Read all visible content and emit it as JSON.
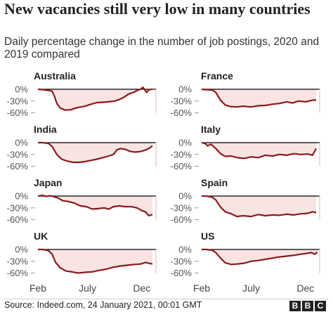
{
  "title": "New vacancies still very low in many countries",
  "subtitle": "Daily percentage change in the number of job postings, 2020 and 2019 compared",
  "source": "Source: Indeed.com, 24 January 2021, 00:01 GMT",
  "logo": [
    "B",
    "B",
    "C"
  ],
  "colors": {
    "line": "#8b1a1a",
    "fill": "#f9e3e3",
    "text": "#222222",
    "grid": "#000000"
  },
  "chart_data": {
    "type": "line",
    "panel_layout": "small multiples, 2 columns x 4 rows",
    "y_ticks": [
      0,
      -30,
      -60
    ],
    "y_tick_labels": [
      "0%",
      "-30%",
      "-60%"
    ],
    "ylim": [
      -65,
      10
    ],
    "x_ticks": [
      "Feb",
      "July",
      "Dec"
    ],
    "xlim": [
      "Feb",
      "Dec"
    ],
    "grid": false,
    "panels": [
      {
        "name": "Australia",
        "points": [
          [
            0,
            0
          ],
          [
            0.04,
            -1
          ],
          [
            0.09,
            -3
          ],
          [
            0.12,
            -5
          ],
          [
            0.14,
            -18
          ],
          [
            0.16,
            -36
          ],
          [
            0.19,
            -48
          ],
          [
            0.23,
            -53
          ],
          [
            0.28,
            -52
          ],
          [
            0.33,
            -47
          ],
          [
            0.4,
            -43
          ],
          [
            0.45,
            -38
          ],
          [
            0.5,
            -34
          ],
          [
            0.55,
            -33
          ],
          [
            0.6,
            -32
          ],
          [
            0.65,
            -30
          ],
          [
            0.69,
            -26
          ],
          [
            0.73,
            -20
          ],
          [
            0.77,
            -12
          ],
          [
            0.81,
            -8
          ],
          [
            0.84,
            -3
          ],
          [
            0.87,
            0
          ],
          [
            0.89,
            5
          ],
          [
            0.92,
            -8
          ],
          [
            0.94,
            -1
          ],
          [
            0.97,
            0
          ]
        ]
      },
      {
        "name": "France",
        "points": [
          [
            0,
            0
          ],
          [
            0.04,
            -1
          ],
          [
            0.09,
            -2
          ],
          [
            0.12,
            -8
          ],
          [
            0.16,
            -28
          ],
          [
            0.2,
            -40
          ],
          [
            0.24,
            -44
          ],
          [
            0.3,
            -45
          ],
          [
            0.35,
            -43
          ],
          [
            0.42,
            -45
          ],
          [
            0.48,
            -42
          ],
          [
            0.54,
            -41
          ],
          [
            0.6,
            -38
          ],
          [
            0.66,
            -36
          ],
          [
            0.72,
            -32
          ],
          [
            0.77,
            -35
          ],
          [
            0.82,
            -30
          ],
          [
            0.88,
            -32
          ],
          [
            0.94,
            -28
          ],
          [
            0.97,
            -27
          ]
        ]
      },
      {
        "name": "India",
        "points": [
          [
            0,
            0
          ],
          [
            0.04,
            0
          ],
          [
            0.09,
            -2
          ],
          [
            0.12,
            -10
          ],
          [
            0.16,
            -30
          ],
          [
            0.2,
            -42
          ],
          [
            0.25,
            -47
          ],
          [
            0.3,
            -50
          ],
          [
            0.35,
            -50
          ],
          [
            0.4,
            -48
          ],
          [
            0.45,
            -45
          ],
          [
            0.5,
            -42
          ],
          [
            0.55,
            -38
          ],
          [
            0.6,
            -34
          ],
          [
            0.64,
            -30
          ],
          [
            0.67,
            -18
          ],
          [
            0.7,
            -15
          ],
          [
            0.74,
            -17
          ],
          [
            0.78,
            -22
          ],
          [
            0.82,
            -24
          ],
          [
            0.86,
            -23
          ],
          [
            0.9,
            -20
          ],
          [
            0.94,
            -15
          ],
          [
            0.97,
            -8
          ]
        ]
      },
      {
        "name": "Italy",
        "points": [
          [
            0,
            0
          ],
          [
            0.03,
            -2
          ],
          [
            0.05,
            -8
          ],
          [
            0.08,
            -4
          ],
          [
            0.12,
            -15
          ],
          [
            0.16,
            -28
          ],
          [
            0.2,
            -35
          ],
          [
            0.25,
            -34
          ],
          [
            0.3,
            -38
          ],
          [
            0.36,
            -40
          ],
          [
            0.42,
            -36
          ],
          [
            0.48,
            -38
          ],
          [
            0.54,
            -32
          ],
          [
            0.6,
            -34
          ],
          [
            0.66,
            -30
          ],
          [
            0.72,
            -32
          ],
          [
            0.78,
            -28
          ],
          [
            0.84,
            -30
          ],
          [
            0.9,
            -29
          ],
          [
            0.94,
            -32
          ],
          [
            0.97,
            -15
          ]
        ]
      },
      {
        "name": "Japan",
        "points": [
          [
            0,
            0
          ],
          [
            0.04,
            2
          ],
          [
            0.07,
            -1
          ],
          [
            0.1,
            1
          ],
          [
            0.13,
            -1
          ],
          [
            0.17,
            -5
          ],
          [
            0.21,
            -12
          ],
          [
            0.26,
            -14
          ],
          [
            0.31,
            -18
          ],
          [
            0.36,
            -25
          ],
          [
            0.41,
            -27
          ],
          [
            0.46,
            -33
          ],
          [
            0.51,
            -32
          ],
          [
            0.56,
            -30
          ],
          [
            0.6,
            -33
          ],
          [
            0.64,
            -27
          ],
          [
            0.69,
            -25
          ],
          [
            0.74,
            -27
          ],
          [
            0.79,
            -27
          ],
          [
            0.84,
            -30
          ],
          [
            0.88,
            -37
          ],
          [
            0.91,
            -40
          ],
          [
            0.94,
            -50
          ],
          [
            0.97,
            -47
          ]
        ]
      },
      {
        "name": "Spain",
        "points": [
          [
            0,
            0
          ],
          [
            0.04,
            0
          ],
          [
            0.09,
            -3
          ],
          [
            0.12,
            -10
          ],
          [
            0.16,
            -28
          ],
          [
            0.2,
            -40
          ],
          [
            0.25,
            -45
          ],
          [
            0.3,
            -52
          ],
          [
            0.35,
            -50
          ],
          [
            0.42,
            -52
          ],
          [
            0.48,
            -47
          ],
          [
            0.54,
            -50
          ],
          [
            0.6,
            -48
          ],
          [
            0.66,
            -49
          ],
          [
            0.72,
            -46
          ],
          [
            0.78,
            -48
          ],
          [
            0.84,
            -45
          ],
          [
            0.9,
            -44
          ],
          [
            0.94,
            -40
          ],
          [
            0.97,
            -42
          ]
        ]
      },
      {
        "name": "UK",
        "points": [
          [
            0,
            0
          ],
          [
            0.04,
            0
          ],
          [
            0.09,
            -3
          ],
          [
            0.12,
            -12
          ],
          [
            0.15,
            -33
          ],
          [
            0.19,
            -47
          ],
          [
            0.24,
            -55
          ],
          [
            0.29,
            -57
          ],
          [
            0.34,
            -60
          ],
          [
            0.4,
            -58
          ],
          [
            0.46,
            -57
          ],
          [
            0.52,
            -53
          ],
          [
            0.58,
            -50
          ],
          [
            0.64,
            -45
          ],
          [
            0.7,
            -42
          ],
          [
            0.76,
            -40
          ],
          [
            0.82,
            -38
          ],
          [
            0.87,
            -37
          ],
          [
            0.91,
            -33
          ],
          [
            0.94,
            -35
          ],
          [
            0.97,
            -37
          ]
        ]
      },
      {
        "name": "US",
        "points": [
          [
            0,
            0
          ],
          [
            0.04,
            0
          ],
          [
            0.09,
            -2
          ],
          [
            0.12,
            -8
          ],
          [
            0.16,
            -22
          ],
          [
            0.2,
            -34
          ],
          [
            0.25,
            -38
          ],
          [
            0.3,
            -37
          ],
          [
            0.36,
            -35
          ],
          [
            0.42,
            -30
          ],
          [
            0.48,
            -28
          ],
          [
            0.54,
            -25
          ],
          [
            0.6,
            -22
          ],
          [
            0.66,
            -19
          ],
          [
            0.72,
            -17
          ],
          [
            0.78,
            -15
          ],
          [
            0.84,
            -12
          ],
          [
            0.89,
            -10
          ],
          [
            0.93,
            -8
          ],
          [
            0.96,
            -12
          ],
          [
            0.98,
            -7
          ]
        ]
      }
    ]
  }
}
